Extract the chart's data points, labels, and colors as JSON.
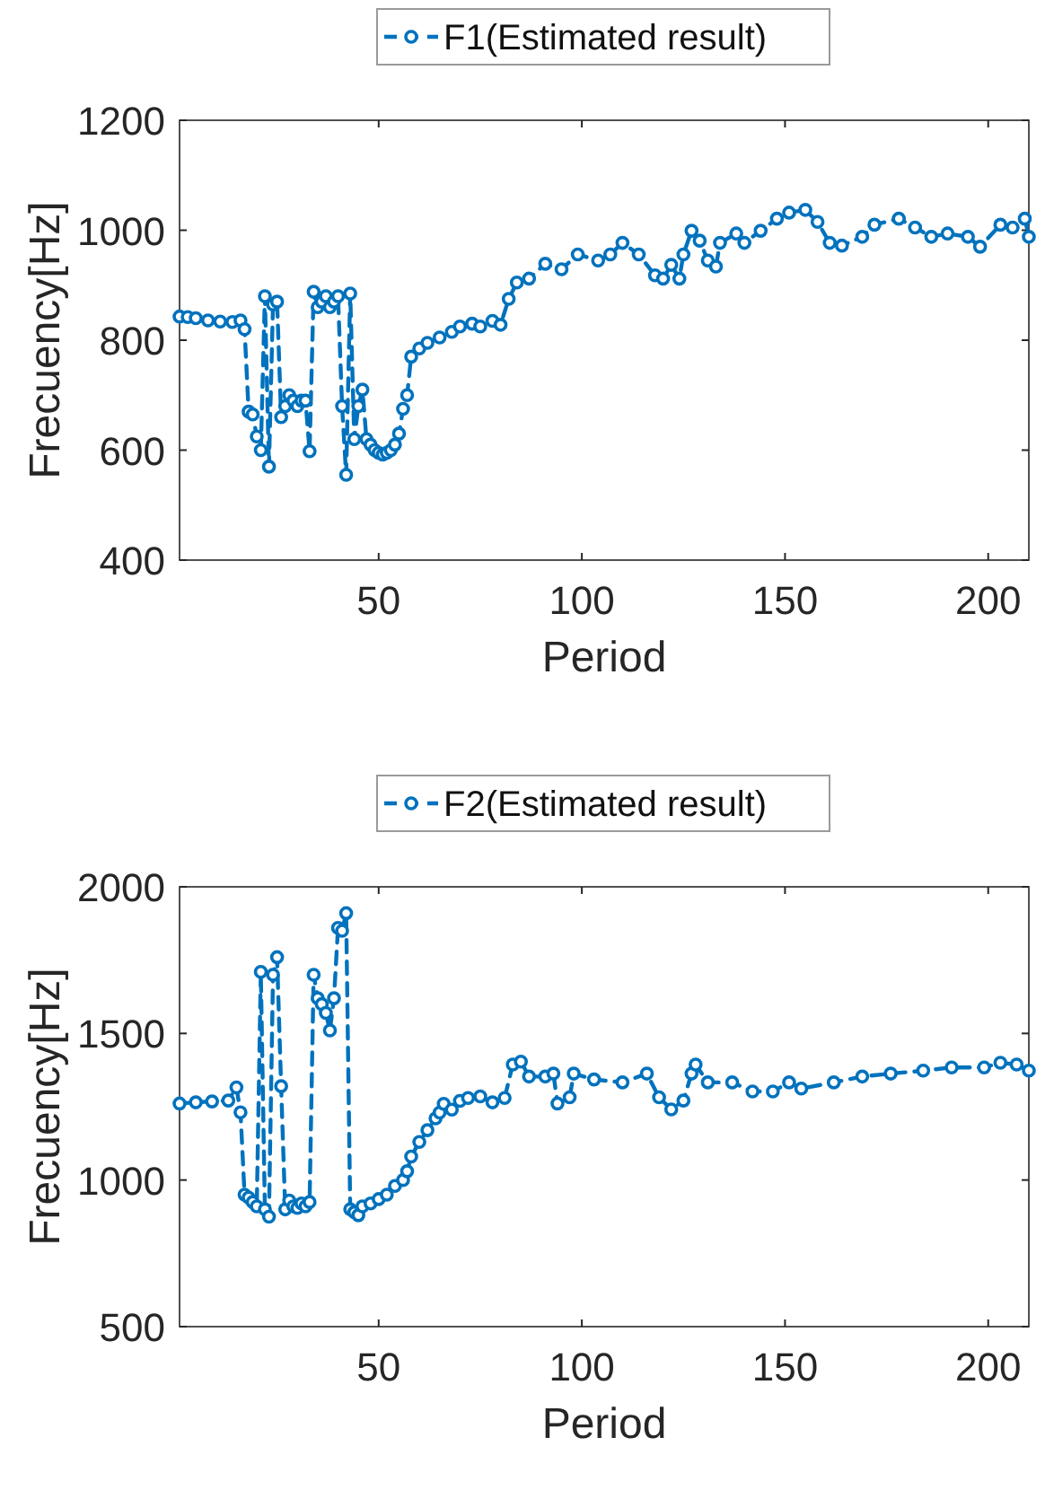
{
  "chart_data": [
    {
      "type": "line",
      "xlabel": "Period",
      "ylabel": "Frecuency[Hz]",
      "xlim": [
        1,
        210
      ],
      "ylim": [
        400,
        1200
      ],
      "xticks": [
        50,
        100,
        150,
        200
      ],
      "yticks": [
        400,
        600,
        800,
        1000,
        1200
      ],
      "grid": false,
      "legend": "top",
      "marker": "circle",
      "line_style": "dashed",
      "x": [
        1,
        3,
        5,
        8,
        11,
        14,
        16,
        17,
        18,
        19,
        20,
        21,
        22,
        23,
        24,
        25,
        26,
        27,
        28,
        29,
        30,
        31,
        32,
        33,
        34,
        35,
        36,
        37,
        38,
        39,
        40,
        41,
        42,
        43,
        44,
        45,
        46,
        47,
        48,
        49,
        50,
        51,
        52,
        53,
        54,
        55,
        56,
        57,
        58,
        60,
        62,
        65,
        68,
        70,
        73,
        75,
        78,
        80,
        82,
        84,
        87,
        91,
        95,
        99,
        104,
        107,
        110,
        114,
        118,
        120,
        122,
        124,
        125,
        127,
        129,
        131,
        133,
        134,
        138,
        140,
        144,
        148,
        151,
        155,
        158,
        161,
        164,
        169,
        172,
        178,
        182,
        186,
        190,
        195,
        198,
        203,
        206,
        209,
        210
      ],
      "series": [
        {
          "name": "F1(Estimated result)",
          "color": "#0072bd",
          "values": [
            843,
            842,
            840,
            836,
            834,
            833,
            836,
            820,
            670,
            665,
            625,
            600,
            880,
            570,
            865,
            870,
            660,
            680,
            700,
            690,
            680,
            690,
            690,
            598,
            888,
            860,
            870,
            880,
            860,
            870,
            880,
            680,
            555,
            885,
            620,
            680,
            710,
            620,
            610,
            600,
            595,
            592,
            595,
            600,
            610,
            630,
            675,
            700,
            770,
            785,
            795,
            805,
            815,
            825,
            830,
            825,
            835,
            828,
            875,
            905,
            912,
            939,
            929,
            956,
            945,
            956,
            977,
            956,
            918,
            912,
            937,
            912,
            956,
            999,
            981,
            945,
            934,
            977,
            994,
            977,
            999,
            1021,
            1032,
            1037,
            1015,
            977,
            972,
            988,
            1010,
            1021,
            1005,
            988,
            994,
            988,
            970,
            1010,
            1005,
            1021,
            988
          ]
        }
      ]
    },
    {
      "type": "line",
      "xlabel": "Period",
      "ylabel": "Frecuency[Hz]",
      "xlim": [
        1,
        210
      ],
      "ylim": [
        500,
        2000
      ],
      "xticks": [
        50,
        100,
        150,
        200
      ],
      "yticks": [
        500,
        1000,
        1500,
        2000
      ],
      "grid": false,
      "legend": "top",
      "marker": "circle",
      "line_style": "dashed",
      "x": [
        1,
        5,
        9,
        13,
        15,
        16,
        17,
        18,
        19,
        20,
        21,
        22,
        23,
        24,
        25,
        26,
        27,
        28,
        29,
        30,
        31,
        32,
        33,
        34,
        35,
        36,
        37,
        38,
        39,
        40,
        41,
        42,
        43,
        44,
        45,
        46,
        48,
        50,
        52,
        54,
        56,
        57,
        58,
        60,
        62,
        64,
        65,
        66,
        68,
        70,
        72,
        75,
        78,
        81,
        83,
        85,
        87,
        91,
        93,
        94,
        97,
        98,
        103,
        110,
        116,
        119,
        122,
        125,
        127,
        128,
        131,
        137,
        142,
        147,
        151,
        154,
        162,
        169,
        176,
        184,
        191,
        199,
        203,
        207,
        210
      ],
      "series": [
        {
          "name": "F2(Estimated result)",
          "color": "#0072bd",
          "values": [
            1261,
            1265,
            1268,
            1271,
            1316,
            1231,
            950,
            940,
            925,
            910,
            1710,
            900,
            875,
            1700,
            1760,
            1320,
            900,
            930,
            910,
            905,
            920,
            910,
            925,
            1700,
            1620,
            1600,
            1570,
            1510,
            1620,
            1860,
            1850,
            1910,
            900,
            890,
            880,
            910,
            920,
            935,
            950,
            980,
            1000,
            1030,
            1080,
            1130,
            1170,
            1210,
            1230,
            1260,
            1240,
            1270,
            1280,
            1285,
            1265,
            1280,
            1394,
            1404,
            1353,
            1353,
            1363,
            1261,
            1282,
            1363,
            1343,
            1333,
            1363,
            1282,
            1241,
            1271,
            1363,
            1394,
            1333,
            1333,
            1302,
            1302,
            1333,
            1312,
            1333,
            1353,
            1363,
            1373,
            1384,
            1384,
            1400,
            1394,
            1373
          ]
        }
      ]
    }
  ]
}
